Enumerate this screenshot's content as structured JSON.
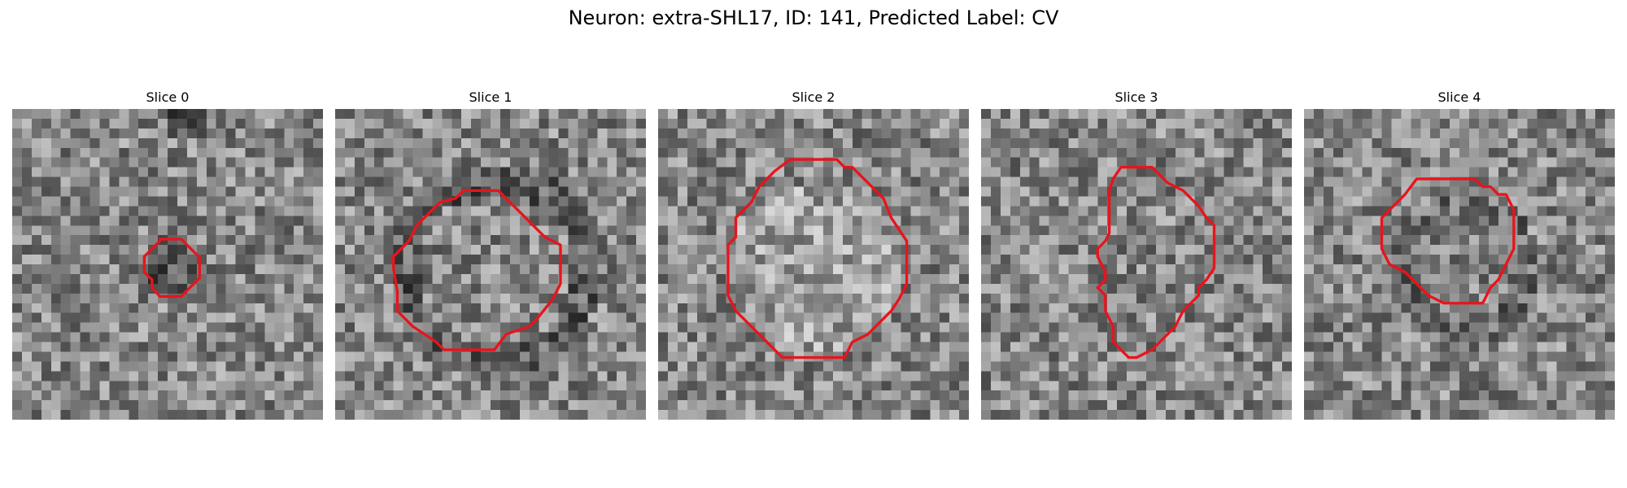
{
  "figure": {
    "title": "Neuron: extra-SHL17, ID: 141, Predicted Label: CV"
  },
  "panels": [
    {
      "title": "Slice 0",
      "grid_size": 32,
      "colormap": "gray",
      "contour_color": "#e8141c",
      "seed": 11,
      "dark_center": true,
      "dark_top": true,
      "contour": [
        [
          15.2,
          13.4
        ],
        [
          17.4,
          13.4
        ],
        [
          19.3,
          15.3
        ],
        [
          19.3,
          17.4
        ],
        [
          17.4,
          19.3
        ],
        [
          15.2,
          19.3
        ],
        [
          14.4,
          18.4
        ],
        [
          14.4,
          17.6
        ],
        [
          13.6,
          16.8
        ],
        [
          13.6,
          15.2
        ],
        [
          15.2,
          13.6
        ]
      ]
    },
    {
      "title": "Slice 1",
      "grid_size": 32,
      "colormap": "gray",
      "contour_color": "#e8141c",
      "seed": 23,
      "dark_ring": true,
      "contour": [
        [
          15.2,
          8.4
        ],
        [
          16.8,
          8.4
        ],
        [
          17.6,
          9.2
        ],
        [
          18.4,
          10.0
        ],
        [
          19.2,
          10.8
        ],
        [
          20.0,
          11.6
        ],
        [
          20.8,
          12.4
        ],
        [
          21.6,
          13.2
        ],
        [
          23.2,
          14.0
        ],
        [
          23.2,
          18.0
        ],
        [
          22.4,
          19.6
        ],
        [
          20.8,
          21.6
        ],
        [
          20.0,
          22.4
        ],
        [
          17.6,
          23.2
        ],
        [
          16.4,
          24.8
        ],
        [
          11.2,
          24.8
        ],
        [
          10.4,
          24.0
        ],
        [
          8.0,
          22.4
        ],
        [
          6.4,
          20.8
        ],
        [
          6.4,
          18.8
        ],
        [
          6.0,
          16.4
        ],
        [
          6.0,
          15.2
        ],
        [
          7.6,
          13.6
        ],
        [
          8.4,
          12.0
        ],
        [
          9.2,
          11.2
        ],
        [
          10.8,
          9.6
        ],
        [
          12.4,
          9.2
        ],
        [
          13.2,
          8.4
        ]
      ]
    },
    {
      "title": "Slice 2",
      "grid_size": 32,
      "colormap": "gray",
      "contour_color": "#e8141c",
      "seed": 37,
      "bright_center": true,
      "contour": [
        [
          13.6,
          5.2
        ],
        [
          18.4,
          5.2
        ],
        [
          19.2,
          6.0
        ],
        [
          20.0,
          6.0
        ],
        [
          20.8,
          6.8
        ],
        [
          21.6,
          7.6
        ],
        [
          22.4,
          8.4
        ],
        [
          23.2,
          9.2
        ],
        [
          24.0,
          11.2
        ],
        [
          24.8,
          12.4
        ],
        [
          25.6,
          13.6
        ],
        [
          25.6,
          18.0
        ],
        [
          24.8,
          19.6
        ],
        [
          24.0,
          20.8
        ],
        [
          23.2,
          21.6
        ],
        [
          22.4,
          22.4
        ],
        [
          21.6,
          23.2
        ],
        [
          20.0,
          24.0
        ],
        [
          19.2,
          25.6
        ],
        [
          12.8,
          25.6
        ],
        [
          11.2,
          24.0
        ],
        [
          9.6,
          22.4
        ],
        [
          8.0,
          20.8
        ],
        [
          7.2,
          19.2
        ],
        [
          7.2,
          16.8
        ],
        [
          7.2,
          14.0
        ],
        [
          8.0,
          13.2
        ],
        [
          8.0,
          11.2
        ],
        [
          9.6,
          9.6
        ],
        [
          10.4,
          8.0
        ],
        [
          12.0,
          6.4
        ]
      ]
    },
    {
      "title": "Slice 3",
      "grid_size": 32,
      "colormap": "gray",
      "contour_color": "#e8141c",
      "seed": 53,
      "contour": [
        [
          14.4,
          6.0
        ],
        [
          17.6,
          6.0
        ],
        [
          18.4,
          6.8
        ],
        [
          19.2,
          7.6
        ],
        [
          20.8,
          8.4
        ],
        [
          22.4,
          10.0
        ],
        [
          23.2,
          11.2
        ],
        [
          24.0,
          12.0
        ],
        [
          24.0,
          15.2
        ],
        [
          24.0,
          16.4
        ],
        [
          23.2,
          17.6
        ],
        [
          22.4,
          18.4
        ],
        [
          22.4,
          19.2
        ],
        [
          21.6,
          20.0
        ],
        [
          20.8,
          20.8
        ],
        [
          20.0,
          22.4
        ],
        [
          19.2,
          23.2
        ],
        [
          18.4,
          24.0
        ],
        [
          17.6,
          24.8
        ],
        [
          16.8,
          25.2
        ],
        [
          16.0,
          25.6
        ],
        [
          15.2,
          25.6
        ],
        [
          14.4,
          24.8
        ],
        [
          13.6,
          24.0
        ],
        [
          13.6,
          22.4
        ],
        [
          12.8,
          20.8
        ],
        [
          12.8,
          19.2
        ],
        [
          12.0,
          18.4
        ],
        [
          12.8,
          17.6
        ],
        [
          12.8,
          16.8
        ],
        [
          12.0,
          15.2
        ],
        [
          12.0,
          14.4
        ],
        [
          12.8,
          13.6
        ],
        [
          13.2,
          12.8
        ],
        [
          13.2,
          8.4
        ],
        [
          13.6,
          7.2
        ]
      ]
    },
    {
      "title": "Slice 4",
      "grid_size": 32,
      "colormap": "gray",
      "contour_color": "#e8141c",
      "seed": 71,
      "dark_ring_soft": true,
      "contour": [
        [
          11.6,
          7.2
        ],
        [
          12.4,
          7.2
        ],
        [
          17.6,
          7.2
        ],
        [
          18.4,
          8.0
        ],
        [
          19.2,
          8.0
        ],
        [
          20.0,
          8.8
        ],
        [
          20.8,
          8.8
        ],
        [
          21.6,
          10.4
        ],
        [
          21.6,
          14.4
        ],
        [
          20.8,
          16.0
        ],
        [
          20.0,
          17.6
        ],
        [
          19.2,
          18.4
        ],
        [
          18.4,
          20.0
        ],
        [
          14.4,
          20.0
        ],
        [
          12.8,
          19.2
        ],
        [
          12.0,
          18.4
        ],
        [
          10.4,
          16.8
        ],
        [
          8.8,
          16.0
        ],
        [
          8.0,
          14.4
        ],
        [
          8.0,
          11.2
        ],
        [
          9.6,
          9.6
        ],
        [
          10.4,
          8.8
        ]
      ]
    }
  ]
}
